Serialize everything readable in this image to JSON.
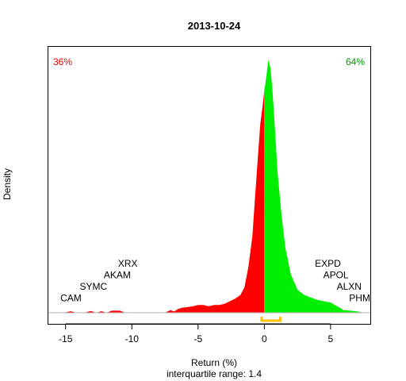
{
  "chart_data": {
    "type": "area",
    "title": "2013-10-24",
    "xlabel": "Return (%)",
    "ylabel": "Density",
    "subtitle": "interquartile range: 1.4",
    "xlim": [
      -16.3,
      8.0
    ],
    "ylim": [
      0,
      1.0
    ],
    "x_ticks": [
      -15,
      -10,
      -5,
      0,
      5
    ],
    "x_tick_labels": [
      "-15",
      "-10",
      "-5",
      "0",
      "5"
    ],
    "pct_negative": "36%",
    "pct_positive": "64%",
    "colors": {
      "negative": "#ff0000",
      "positive": "#00ee00",
      "iqr": "#ffc000",
      "baseline": "#b0b0b0",
      "neg_label": "#dd0000",
      "pos_label": "#009900"
    },
    "iqr": [
      -0.2,
      1.2
    ],
    "density": {
      "x": [
        -15.2,
        -14.6,
        -14.2,
        -13.6,
        -13.1,
        -12.7,
        -12.3,
        -11.9,
        -11.5,
        -10.9,
        -10.5,
        -10.0,
        -9.5,
        -8.5,
        -7.5,
        -7.1,
        -6.8,
        -6.5,
        -6.2,
        -5.8,
        -5.4,
        -5.0,
        -4.6,
        -4.2,
        -3.8,
        -3.4,
        -3.0,
        -2.6,
        -2.2,
        -1.8,
        -1.5,
        -1.2,
        -0.9,
        -0.7,
        -0.5,
        -0.3,
        -0.15,
        0.0,
        0.15,
        0.3,
        0.45,
        0.6,
        0.8,
        1.0,
        1.3,
        1.6,
        2.0,
        2.5,
        3.0,
        3.5,
        4.0,
        4.5,
        5.0,
        5.5,
        6.0,
        6.5,
        7.0,
        7.5,
        7.8
      ],
      "y": [
        0.0,
        0.006,
        0.0,
        0.0,
        0.007,
        0.0,
        0.006,
        0.0,
        0.008,
        0.008,
        0.0,
        0.0,
        0.0,
        0.0,
        0.0,
        0.01,
        0.005,
        0.015,
        0.02,
        0.022,
        0.025,
        0.03,
        0.03,
        0.025,
        0.03,
        0.03,
        0.035,
        0.045,
        0.055,
        0.07,
        0.1,
        0.18,
        0.3,
        0.45,
        0.6,
        0.74,
        0.8,
        0.87,
        0.92,
        0.99,
        0.96,
        0.88,
        0.72,
        0.55,
        0.38,
        0.25,
        0.15,
        0.09,
        0.07,
        0.06,
        0.05,
        0.045,
        0.04,
        0.025,
        0.01,
        0.008,
        0.005,
        0.0,
        0.0
      ]
    },
    "annotations": [
      {
        "label": "CAM",
        "x": -14.6,
        "y": 0.045
      },
      {
        "label": "SYMC",
        "x": -12.9,
        "y": 0.09
      },
      {
        "label": "AKAM",
        "x": -11.1,
        "y": 0.135
      },
      {
        "label": "XRX",
        "x": -10.3,
        "y": 0.18
      },
      {
        "label": "EXPD",
        "x": 4.8,
        "y": 0.18
      },
      {
        "label": "APOL",
        "x": 5.4,
        "y": 0.135
      },
      {
        "label": "ALXN",
        "x": 6.4,
        "y": 0.09
      },
      {
        "label": "PHM",
        "x": 7.2,
        "y": 0.045
      }
    ]
  }
}
